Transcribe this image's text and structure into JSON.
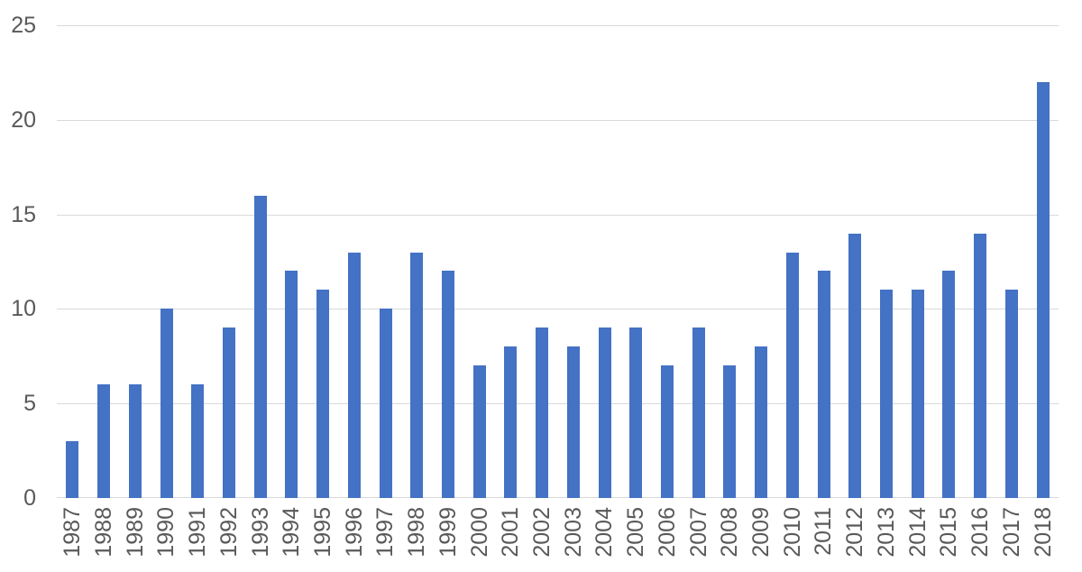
{
  "chart": {
    "bar_color": "#4472C4",
    "gridline_color": "#D9D9D9",
    "label_color": "#595959",
    "background_color": "#FFFFFF"
  },
  "chart_data": {
    "type": "bar",
    "title": "",
    "xlabel": "",
    "ylabel": "",
    "categories": [
      "1987",
      "1988",
      "1989",
      "1990",
      "1991",
      "1992",
      "1993",
      "1994",
      "1995",
      "1996",
      "1997",
      "1998",
      "1999",
      "2000",
      "2001",
      "2002",
      "2003",
      "2004",
      "2005",
      "2006",
      "2007",
      "2008",
      "2009",
      "2010",
      "2011",
      "2012",
      "2013",
      "2014",
      "2015",
      "2016",
      "2017",
      "2018"
    ],
    "values": [
      3,
      6,
      6,
      10,
      6,
      9,
      16,
      12,
      11,
      13,
      10,
      13,
      12,
      7,
      8,
      9,
      8,
      9,
      9,
      7,
      9,
      7,
      8,
      13,
      12,
      14,
      11,
      11,
      12,
      14,
      11,
      22
    ],
    "ylim": [
      0,
      25
    ],
    "yticks": [
      0,
      5,
      10,
      15,
      20,
      25
    ],
    "grid": "horizontal",
    "legend": "none",
    "x_label_rotation_degrees": 90
  }
}
